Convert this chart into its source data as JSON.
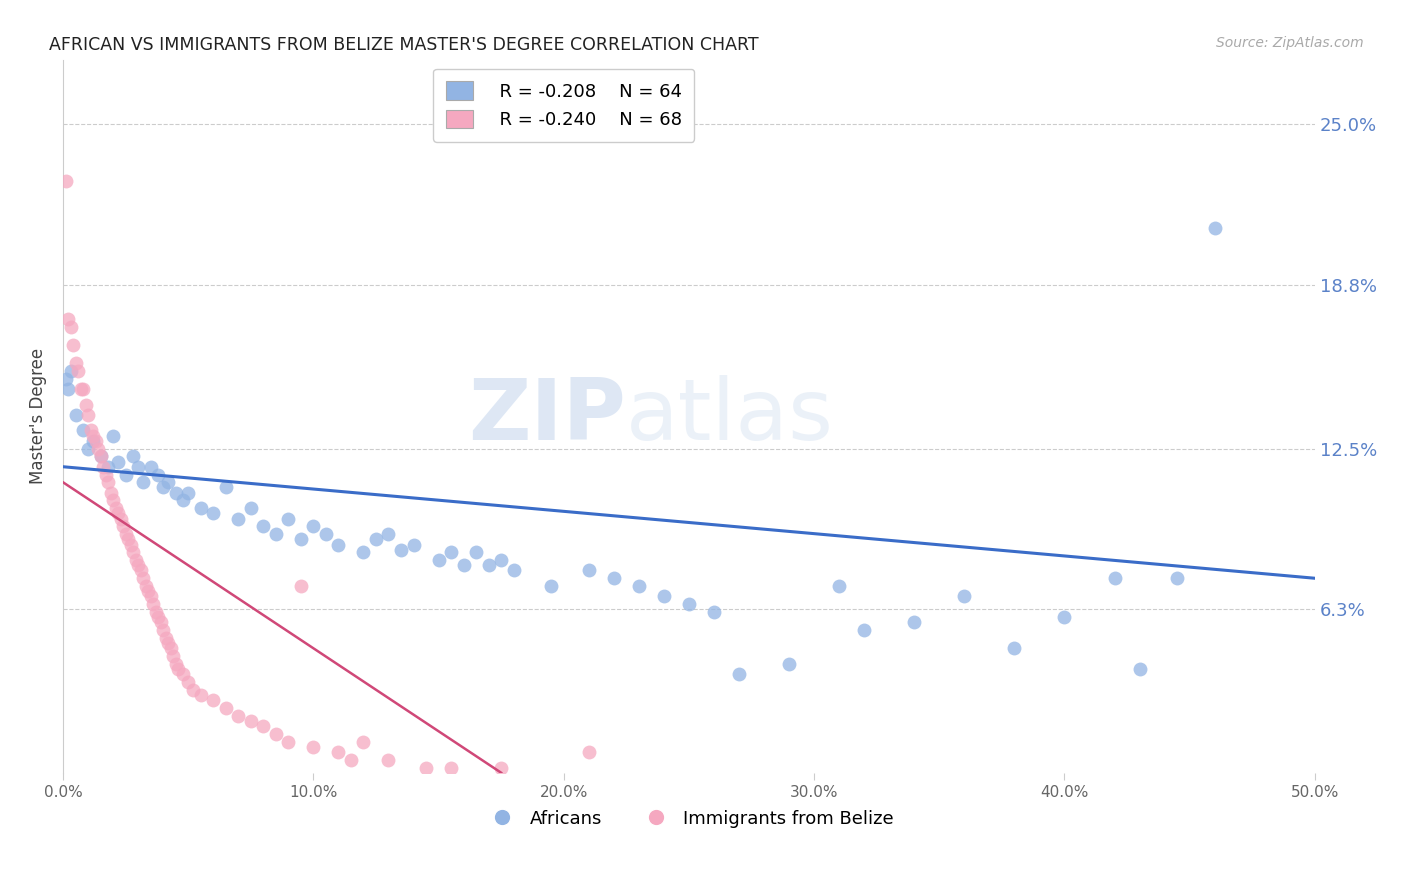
{
  "title": "AFRICAN VS IMMIGRANTS FROM BELIZE MASTER'S DEGREE CORRELATION CHART",
  "source": "Source: ZipAtlas.com",
  "ylabel": "Master's Degree",
  "ytick_labels": [
    "25.0%",
    "18.8%",
    "12.5%",
    "6.3%"
  ],
  "ytick_values": [
    0.25,
    0.188,
    0.125,
    0.063
  ],
  "xlim": [
    0.0,
    0.5
  ],
  "ylim": [
    0.0,
    0.275
  ],
  "watermark_zip": "ZIP",
  "watermark_atlas": "atlas",
  "legend_blue_r": "R = -0.208",
  "legend_blue_n": "N = 64",
  "legend_pink_r": "R = -0.240",
  "legend_pink_n": "N = 68",
  "legend_label_blue": "Africans",
  "legend_label_pink": "Immigrants from Belize",
  "blue_color": "#92b4e3",
  "pink_color": "#f5a8c0",
  "trendline_blue_color": "#3a6cc8",
  "trendline_pink_color": "#d04878",
  "blue_scatter": [
    [
      0.001,
      0.152
    ],
    [
      0.002,
      0.148
    ],
    [
      0.003,
      0.155
    ],
    [
      0.005,
      0.138
    ],
    [
      0.008,
      0.132
    ],
    [
      0.01,
      0.125
    ],
    [
      0.012,
      0.128
    ],
    [
      0.015,
      0.122
    ],
    [
      0.018,
      0.118
    ],
    [
      0.02,
      0.13
    ],
    [
      0.022,
      0.12
    ],
    [
      0.025,
      0.115
    ],
    [
      0.028,
      0.122
    ],
    [
      0.03,
      0.118
    ],
    [
      0.032,
      0.112
    ],
    [
      0.035,
      0.118
    ],
    [
      0.038,
      0.115
    ],
    [
      0.04,
      0.11
    ],
    [
      0.042,
      0.112
    ],
    [
      0.045,
      0.108
    ],
    [
      0.048,
      0.105
    ],
    [
      0.05,
      0.108
    ],
    [
      0.055,
      0.102
    ],
    [
      0.06,
      0.1
    ],
    [
      0.065,
      0.11
    ],
    [
      0.07,
      0.098
    ],
    [
      0.075,
      0.102
    ],
    [
      0.08,
      0.095
    ],
    [
      0.085,
      0.092
    ],
    [
      0.09,
      0.098
    ],
    [
      0.095,
      0.09
    ],
    [
      0.1,
      0.095
    ],
    [
      0.105,
      0.092
    ],
    [
      0.11,
      0.088
    ],
    [
      0.12,
      0.085
    ],
    [
      0.125,
      0.09
    ],
    [
      0.13,
      0.092
    ],
    [
      0.135,
      0.086
    ],
    [
      0.14,
      0.088
    ],
    [
      0.15,
      0.082
    ],
    [
      0.155,
      0.085
    ],
    [
      0.16,
      0.08
    ],
    [
      0.165,
      0.085
    ],
    [
      0.17,
      0.08
    ],
    [
      0.175,
      0.082
    ],
    [
      0.18,
      0.078
    ],
    [
      0.195,
      0.072
    ],
    [
      0.21,
      0.078
    ],
    [
      0.22,
      0.075
    ],
    [
      0.23,
      0.072
    ],
    [
      0.24,
      0.068
    ],
    [
      0.25,
      0.065
    ],
    [
      0.26,
      0.062
    ],
    [
      0.27,
      0.038
    ],
    [
      0.29,
      0.042
    ],
    [
      0.31,
      0.072
    ],
    [
      0.32,
      0.055
    ],
    [
      0.34,
      0.058
    ],
    [
      0.36,
      0.068
    ],
    [
      0.38,
      0.048
    ],
    [
      0.4,
      0.06
    ],
    [
      0.42,
      0.075
    ],
    [
      0.43,
      0.04
    ],
    [
      0.445,
      0.075
    ],
    [
      0.46,
      0.21
    ]
  ],
  "pink_scatter": [
    [
      0.001,
      0.228
    ],
    [
      0.002,
      0.175
    ],
    [
      0.003,
      0.172
    ],
    [
      0.004,
      0.165
    ],
    [
      0.005,
      0.158
    ],
    [
      0.006,
      0.155
    ],
    [
      0.007,
      0.148
    ],
    [
      0.008,
      0.148
    ],
    [
      0.009,
      0.142
    ],
    [
      0.01,
      0.138
    ],
    [
      0.011,
      0.132
    ],
    [
      0.012,
      0.13
    ],
    [
      0.013,
      0.128
    ],
    [
      0.014,
      0.125
    ],
    [
      0.015,
      0.122
    ],
    [
      0.016,
      0.118
    ],
    [
      0.017,
      0.115
    ],
    [
      0.018,
      0.112
    ],
    [
      0.019,
      0.108
    ],
    [
      0.02,
      0.105
    ],
    [
      0.021,
      0.102
    ],
    [
      0.022,
      0.1
    ],
    [
      0.023,
      0.098
    ],
    [
      0.024,
      0.095
    ],
    [
      0.025,
      0.092
    ],
    [
      0.026,
      0.09
    ],
    [
      0.027,
      0.088
    ],
    [
      0.028,
      0.085
    ],
    [
      0.029,
      0.082
    ],
    [
      0.03,
      0.08
    ],
    [
      0.031,
      0.078
    ],
    [
      0.032,
      0.075
    ],
    [
      0.033,
      0.072
    ],
    [
      0.034,
      0.07
    ],
    [
      0.035,
      0.068
    ],
    [
      0.036,
      0.065
    ],
    [
      0.037,
      0.062
    ],
    [
      0.038,
      0.06
    ],
    [
      0.039,
      0.058
    ],
    [
      0.04,
      0.055
    ],
    [
      0.041,
      0.052
    ],
    [
      0.042,
      0.05
    ],
    [
      0.043,
      0.048
    ],
    [
      0.044,
      0.045
    ],
    [
      0.045,
      0.042
    ],
    [
      0.046,
      0.04
    ],
    [
      0.048,
      0.038
    ],
    [
      0.05,
      0.035
    ],
    [
      0.052,
      0.032
    ],
    [
      0.055,
      0.03
    ],
    [
      0.06,
      0.028
    ],
    [
      0.065,
      0.025
    ],
    [
      0.07,
      0.022
    ],
    [
      0.075,
      0.02
    ],
    [
      0.08,
      0.018
    ],
    [
      0.085,
      0.015
    ],
    [
      0.09,
      0.012
    ],
    [
      0.095,
      0.072
    ],
    [
      0.1,
      0.01
    ],
    [
      0.11,
      0.008
    ],
    [
      0.115,
      0.005
    ],
    [
      0.12,
      0.012
    ],
    [
      0.13,
      0.005
    ],
    [
      0.145,
      0.002
    ],
    [
      0.155,
      0.002
    ],
    [
      0.175,
      0.002
    ],
    [
      0.21,
      0.008
    ]
  ],
  "blue_trend_x": [
    0.0,
    0.5
  ],
  "blue_trend_y": [
    0.118,
    0.075
  ],
  "pink_trend_x": [
    0.0,
    0.175
  ],
  "pink_trend_y": [
    0.112,
    0.0
  ],
  "xtick_positions": [
    0.0,
    0.1,
    0.2,
    0.3,
    0.4,
    0.5
  ],
  "xtick_labels": [
    "0.0%",
    "10.0%",
    "20.0%",
    "30.0%",
    "40.0%",
    "50.0%"
  ]
}
